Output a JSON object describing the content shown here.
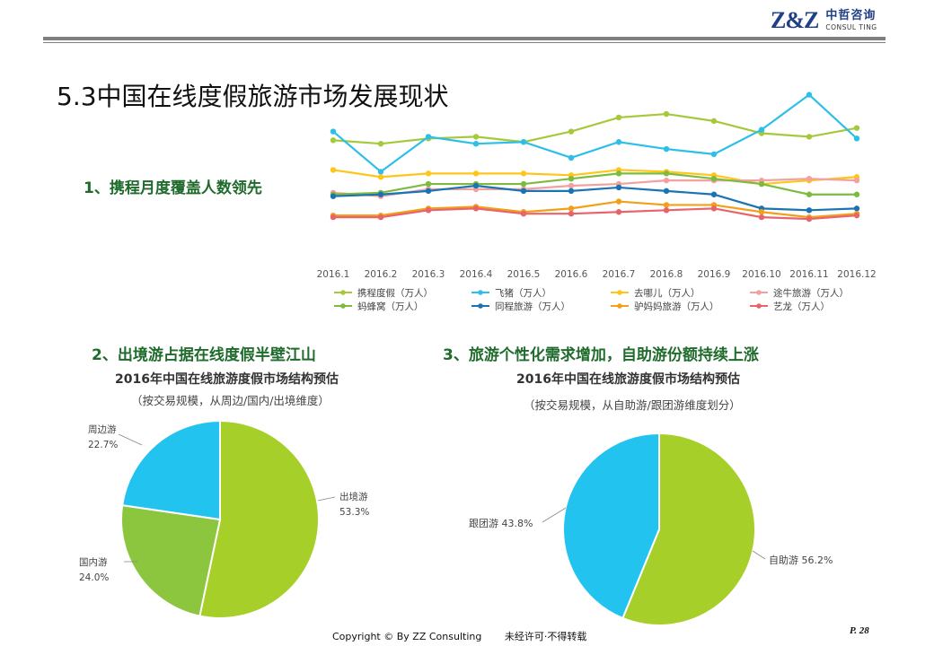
{
  "header": {
    "logo_mark": "Z&Z",
    "logo_cn": "中哲咨询",
    "logo_en": "CONSUL TING"
  },
  "page_title": "5.3中国在线度假旅游市场发展现状",
  "sections": {
    "s1": "1、携程月度覆盖人数领先",
    "s2": "2、出境游占据在线度假半壁江山",
    "s3": "3、旅游个性化需求增加，自助游份额持续上涨"
  },
  "pie1_title": "2016年中国在线旅游度假市场结构预估",
  "pie1_subtitle": "（按交易规模，从周边/国内/出境维度）",
  "pie2_title": "2016年中国在线旅游度假市场结构预估",
  "pie2_subtitle": "（按交易规模，从自助游/跟团游维度划分）",
  "footer": {
    "copyright": "Copyright © By  ZZ Consulting",
    "notice": "未经许可·不得转载",
    "page": "P. 28"
  },
  "chart_data": [
    {
      "type": "line",
      "categories": [
        "2016.1",
        "2016.2",
        "2016.3",
        "2016.4",
        "2016.5",
        "2016.6",
        "2016.7",
        "2016.8",
        "2016.9",
        "2016.10",
        "2016.11",
        "2016.12"
      ],
      "ylim": [
        0,
        100
      ],
      "grid": false,
      "legend_position": "bottom",
      "series": [
        {
          "name": "携程度假（万人）",
          "color": "#a6c93b",
          "values": [
            66,
            64,
            67,
            68,
            65,
            71,
            79,
            81,
            77,
            70,
            68,
            73
          ]
        },
        {
          "name": "飞猪（万人）",
          "color": "#2dbfe8",
          "values": [
            71,
            48,
            68,
            64,
            65,
            56,
            65,
            61,
            58,
            72,
            92,
            67
          ]
        },
        {
          "name": "去哪儿（万人）",
          "color": "#ffc61a",
          "values": [
            49,
            45,
            47,
            47,
            47,
            46,
            49,
            48,
            46,
            41,
            43,
            45
          ]
        },
        {
          "name": "途牛旅游（万人）",
          "color": "#f2a0a0",
          "values": [
            36,
            34,
            38,
            38,
            38,
            40,
            41,
            43,
            43,
            43,
            44,
            43
          ]
        },
        {
          "name": "蚂蜂窝（万人）",
          "color": "#7cbb3e",
          "values": [
            35,
            36,
            41,
            41,
            41,
            44,
            47,
            47,
            44,
            41,
            35,
            35
          ]
        },
        {
          "name": "同程旅游（万人）",
          "color": "#1a73b3",
          "values": [
            34,
            35,
            37,
            40,
            37,
            37,
            39,
            37,
            35,
            27,
            26,
            27
          ]
        },
        {
          "name": "驴妈妈旅游（万人）",
          "color": "#f2a01a",
          "values": [
            23,
            23,
            27,
            28,
            25,
            27,
            31,
            29,
            29,
            25,
            22,
            24
          ]
        },
        {
          "name": "艺龙（万人）",
          "color": "#e8646b",
          "values": [
            22,
            22,
            26,
            27,
            24,
            24,
            25,
            26,
            27,
            22,
            21,
            23
          ]
        }
      ]
    },
    {
      "type": "pie",
      "title": "2016年中国在线旅游度假市场结构预估",
      "subtitle": "（按交易规模，从周边/国内/出境维度）",
      "slices": [
        {
          "label": "出境游",
          "value": 53.3,
          "pct": "53.3%",
          "color": "#a6cf2a"
        },
        {
          "label": "国内游",
          "value": 24.0,
          "pct": "24.0%",
          "color": "#8bc63e"
        },
        {
          "label": "周边游",
          "value": 22.7,
          "pct": "22.7%",
          "color": "#22c3ee"
        }
      ]
    },
    {
      "type": "pie",
      "title": "2016年中国在线旅游度假市场结构预估",
      "subtitle": "（按交易规模，从自助游/跟团游维度划分）",
      "slices": [
        {
          "label": "自助游",
          "value": 56.2,
          "pct": "56.2%",
          "color": "#a6cf2a"
        },
        {
          "label": "跟团游",
          "value": 43.8,
          "pct": "43.8%",
          "color": "#22c3ee"
        }
      ]
    }
  ]
}
